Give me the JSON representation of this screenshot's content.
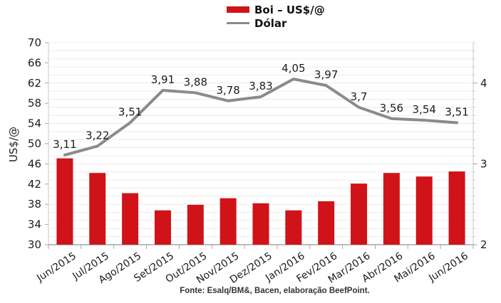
{
  "footer": {
    "source_text": "Fonte: Esalq/BM&, Bacen, elaboração BeefPoint."
  },
  "chart_data": {
    "type": "bar+line combo",
    "categories": [
      "Jun/2015",
      "Jul/2015",
      "Ago/2015",
      "Set/2015",
      "Out/2015",
      "Nov/2015",
      "Dez/2015",
      "Jan/2016",
      "Fev/2016",
      "Mar/2016",
      "Abr/2016",
      "Mai/2016",
      "Jun/2016"
    ],
    "series": [
      {
        "name": "Boi – US$/@",
        "type": "bar",
        "axis": "left",
        "color": "#D01318",
        "values": [
          47.1,
          44.2,
          40.2,
          36.8,
          37.9,
          39.2,
          38.2,
          36.8,
          38.6,
          42.1,
          44.2,
          43.5,
          44.5
        ]
      },
      {
        "name": "Dólar",
        "type": "line",
        "axis": "right",
        "color": "#8B8B8B",
        "values": [
          3.11,
          3.22,
          3.51,
          3.91,
          3.88,
          3.78,
          3.83,
          4.05,
          3.97,
          3.7,
          3.56,
          3.54,
          3.51
        ],
        "labels": [
          "3,11",
          "3,22",
          "3,51",
          "3,91",
          "3,88",
          "3,78",
          "3,83",
          "4,05",
          "3,97",
          "3,7",
          "3,56",
          "3,54",
          "3,51"
        ]
      }
    ],
    "left_axis": {
      "title": "US$/@",
      "min": 30,
      "max": 70,
      "ticks": [
        30,
        34,
        38,
        42,
        46,
        50,
        54,
        58,
        62,
        66,
        70
      ]
    },
    "right_axis": {
      "min": 2,
      "max": 4.5,
      "labeled_ticks": [
        2,
        3,
        4
      ],
      "minor_step": 0.1
    },
    "grid": "horizontal minor gridlines, no vertical gridlines",
    "legend_position": "top-center, two rows",
    "colors": {
      "bar": "#D01318",
      "line": "#8B8B8B",
      "gridline": "#ECECEC",
      "plot_border": "#C9C9C9",
      "axis_line": "#A6A6A6",
      "text": "#1c1c1c"
    }
  }
}
